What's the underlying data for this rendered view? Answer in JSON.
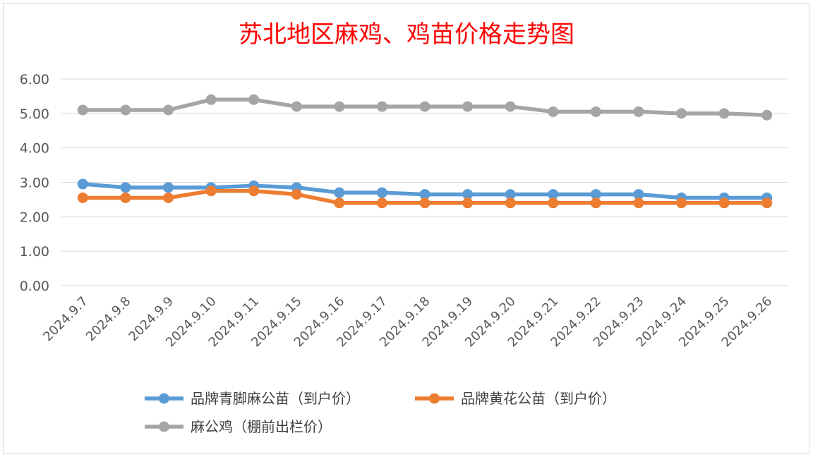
{
  "chart_data": {
    "type": "line",
    "title": "苏北地区麻鸡、鸡苗价格走势图",
    "categories": [
      "2024.9.7",
      "2024.9.8",
      "2024.9.9",
      "2024.9.10",
      "2024.9.11",
      "2024.9.15",
      "2024.9.16",
      "2024.9.17",
      "2024.9.18",
      "2024.9.19",
      "2024.9.20",
      "2024.9.21",
      "2024.9.22",
      "2024.9.23",
      "2024.9.24",
      "2024.9.25",
      "2024.9.26"
    ],
    "y_ticks": [
      "0.00",
      "1.00",
      "2.00",
      "3.00",
      "4.00",
      "5.00",
      "6.00"
    ],
    "ylim": [
      0,
      6
    ],
    "grid": true,
    "legend_position": "bottom",
    "series": [
      {
        "name": "品牌青脚麻公苗（到户价）",
        "color": "#5b9bd5",
        "values": [
          2.95,
          2.85,
          2.85,
          2.85,
          2.9,
          2.85,
          2.7,
          2.7,
          2.65,
          2.65,
          2.65,
          2.65,
          2.65,
          2.65,
          2.55,
          2.55,
          2.55
        ]
      },
      {
        "name": "品牌黄花公苗（到户价）",
        "color": "#ed7d31",
        "values": [
          2.55,
          2.55,
          2.55,
          2.75,
          2.75,
          2.65,
          2.4,
          2.4,
          2.4,
          2.4,
          2.4,
          2.4,
          2.4,
          2.4,
          2.4,
          2.4,
          2.4
        ]
      },
      {
        "name": "麻公鸡（棚前出栏价）",
        "color": "#a5a5a5",
        "values": [
          5.1,
          5.1,
          5.1,
          5.4,
          5.4,
          5.2,
          5.2,
          5.2,
          5.2,
          5.2,
          5.2,
          5.05,
          5.05,
          5.05,
          5.0,
          5.0,
          4.95
        ]
      }
    ]
  }
}
